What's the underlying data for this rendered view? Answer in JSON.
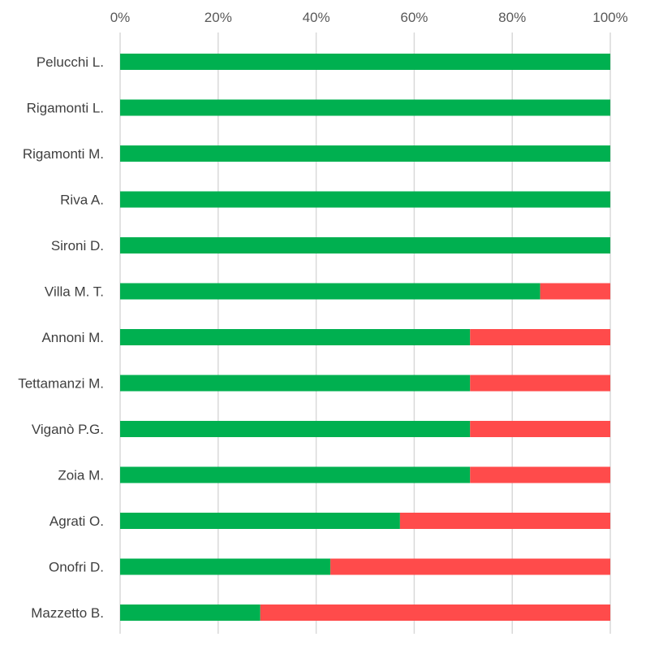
{
  "chart_data": {
    "type": "bar",
    "orientation": "horizontal",
    "stacked": "percent",
    "categories": [
      "Pelucchi L.",
      "Rigamonti L.",
      "Rigamonti M.",
      "Riva A.",
      "Sironi D.",
      "Villa M. T.",
      "Annoni M.",
      "Tettamanzi M.",
      "Viganò P.G.",
      "Zoia M.",
      "Agrati O.",
      "Onofri D.",
      "Mazzetto B."
    ],
    "series": [
      {
        "color": "#00B050",
        "values": [
          100,
          100,
          100,
          100,
          100,
          85.7,
          71.4,
          71.4,
          71.4,
          71.4,
          57.1,
          42.9,
          28.6
        ]
      },
      {
        "color": "#FF4B4B",
        "values": [
          0,
          0,
          0,
          0,
          0,
          14.3,
          28.6,
          28.6,
          28.6,
          28.6,
          42.9,
          57.1,
          71.4
        ]
      }
    ],
    "x_ticks": [
      "0%",
      "20%",
      "40%",
      "60%",
      "80%",
      "100%"
    ],
    "xlim": [
      0,
      100
    ],
    "grid": "vertical",
    "axis_position": "top",
    "legend": "none"
  }
}
